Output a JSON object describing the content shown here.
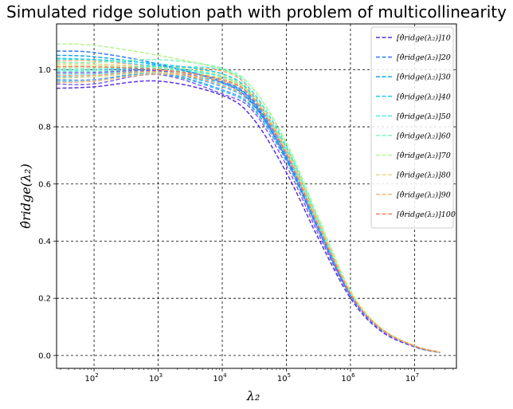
{
  "chart_data": {
    "type": "line",
    "title": "Simulated ridge solution path with problem of multicollinearity",
    "xlabel": "λ₂",
    "ylabel": "θ̂ridge(λ₂)",
    "x_scale": "log",
    "xlim": [
      26,
      45000000
    ],
    "ylim": [
      -0.045,
      1.16
    ],
    "xticks": [
      {
        "value": 100,
        "base": "10",
        "exp": "2"
      },
      {
        "value": 1000,
        "base": "10",
        "exp": "3"
      },
      {
        "value": 10000,
        "base": "10",
        "exp": "4"
      },
      {
        "value": 100000,
        "base": "10",
        "exp": "5"
      },
      {
        "value": 1000000,
        "base": "10",
        "exp": "6"
      },
      {
        "value": 10000000,
        "base": "10",
        "exp": "7"
      }
    ],
    "yticks": [
      "0.0",
      "0.2",
      "0.4",
      "0.6",
      "0.8",
      "1.0"
    ],
    "grid": true,
    "grid_style": "dashed",
    "legend_position": "upper-right",
    "x": [
      26,
      100,
      1000,
      10000,
      30000,
      100000,
      300000,
      1000000,
      3000000,
      10000000,
      25000000
    ],
    "series": [
      {
        "name": "[θ̂ridge(λ₂)]10",
        "sub": "10",
        "color": "#5a2fe6",
        "values": [
          0.935,
          0.94,
          0.96,
          0.91,
          0.83,
          0.64,
          0.42,
          0.2,
          0.085,
          0.03,
          0.01
        ]
      },
      {
        "name": "[θ̂ridge(λ₂)]20",
        "sub": "20",
        "color": "#2f7cf5",
        "values": [
          1.065,
          1.06,
          1.02,
          0.955,
          0.88,
          0.69,
          0.455,
          0.21,
          0.09,
          0.032,
          0.01
        ]
      },
      {
        "name": "[θ̂ridge(λ₂)]30",
        "sub": "30",
        "color": "#12a6f0",
        "values": [
          1.05,
          1.045,
          1.015,
          0.96,
          0.89,
          0.7,
          0.46,
          0.215,
          0.092,
          0.032,
          0.01
        ]
      },
      {
        "name": "[θ̂ridge(λ₂)]40",
        "sub": "40",
        "color": "#1cd0ea",
        "values": [
          1.04,
          1.035,
          1.02,
          0.985,
          0.91,
          0.715,
          0.47,
          0.218,
          0.093,
          0.033,
          0.011
        ]
      },
      {
        "name": "[θ̂ridge(λ₂)]50",
        "sub": "50",
        "color": "#4ef0d0",
        "values": [
          1.0,
          1.0,
          1.01,
          0.975,
          0.905,
          0.71,
          0.47,
          0.218,
          0.093,
          0.033,
          0.011
        ]
      },
      {
        "name": "[θ̂ridge(λ₂)]60",
        "sub": "60",
        "color": "#7ff7bc",
        "values": [
          1.025,
          1.025,
          1.035,
          1.005,
          0.935,
          0.74,
          0.49,
          0.225,
          0.095,
          0.034,
          0.011
        ]
      },
      {
        "name": "[θ̂ridge(λ₂)]70",
        "sub": "70",
        "color": "#b4f58c",
        "values": [
          1.09,
          1.085,
          1.05,
          1.0,
          0.935,
          0.745,
          0.495,
          0.227,
          0.096,
          0.034,
          0.011
        ]
      },
      {
        "name": "[θ̂ridge(λ₂)]80",
        "sub": "80",
        "color": "#e2de86",
        "values": [
          0.97,
          0.975,
          0.99,
          0.97,
          0.905,
          0.715,
          0.475,
          0.22,
          0.094,
          0.033,
          0.011
        ]
      },
      {
        "name": "[θ̂ridge(λ₂)]90",
        "sub": "90",
        "color": "#fcb673",
        "values": [
          0.955,
          0.96,
          0.985,
          0.96,
          0.9,
          0.71,
          0.47,
          0.218,
          0.093,
          0.033,
          0.011
        ]
      },
      {
        "name": "[θ̂ridge(λ₂)]100",
        "sub": "100",
        "color": "#fb7d58",
        "values": [
          1.01,
          1.01,
          1.0,
          0.965,
          0.9,
          0.705,
          0.465,
          0.216,
          0.092,
          0.033,
          0.011
        ]
      }
    ],
    "background_series": {
      "colors": [
        "#6b46ea",
        "#3a8ff2",
        "#20b7ef",
        "#36dfe0",
        "#66f3c9",
        "#99f6a8",
        "#c9ec8a",
        "#efcc7c",
        "#fca56a",
        "#f98d5e"
      ],
      "start_values": [
        0.95,
        0.965,
        0.975,
        0.985,
        0.995,
        1.005,
        1.015,
        1.02,
        1.03,
        0.98,
        0.99,
        1.0,
        0.96,
        1.035,
        1.01
      ]
    }
  }
}
